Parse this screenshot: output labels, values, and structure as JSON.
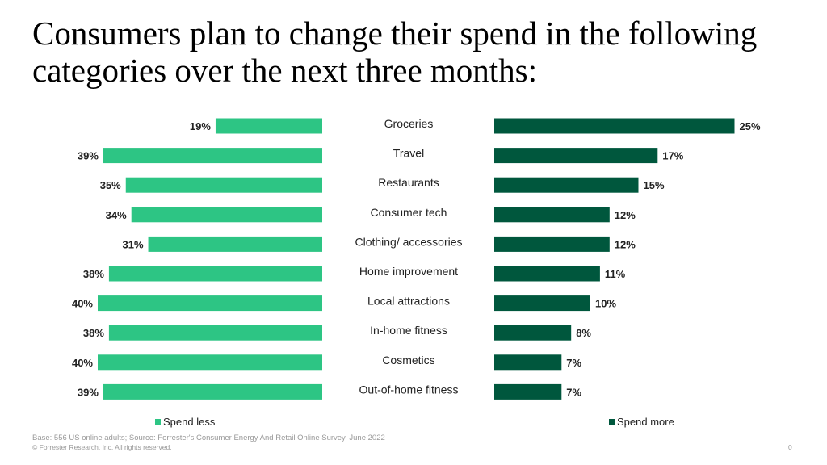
{
  "title": "Consumers plan to change their spend in the following categories over the next three months:",
  "chart_data": {
    "type": "bar",
    "orientation": "horizontal-butterfly",
    "categories": [
      "Groceries",
      "Travel",
      "Restaurants",
      "Consumer tech",
      "Clothing/ accessories",
      "Home improvement",
      "Local attractions",
      "In-home fitness",
      "Cosmetics",
      "Out-of-home fitness"
    ],
    "series": [
      {
        "name": "Spend less",
        "color": "#2DC584",
        "values": [
          19,
          39,
          35,
          34,
          31,
          38,
          40,
          38,
          40,
          39
        ]
      },
      {
        "name": "Spend more",
        "color": "#00573D",
        "values": [
          25,
          17,
          15,
          12,
          12,
          11,
          10,
          8,
          7,
          7
        ]
      }
    ],
    "value_format": "{v}%",
    "legend": "bottom"
  },
  "footer": {
    "source": "Base: 556 US online adults; Source: Forrester's Consumer Energy And Retail Online Survey,  June 2022",
    "copyright": "© Forrester Research, Inc. All rights reserved.",
    "page_number": "0"
  }
}
